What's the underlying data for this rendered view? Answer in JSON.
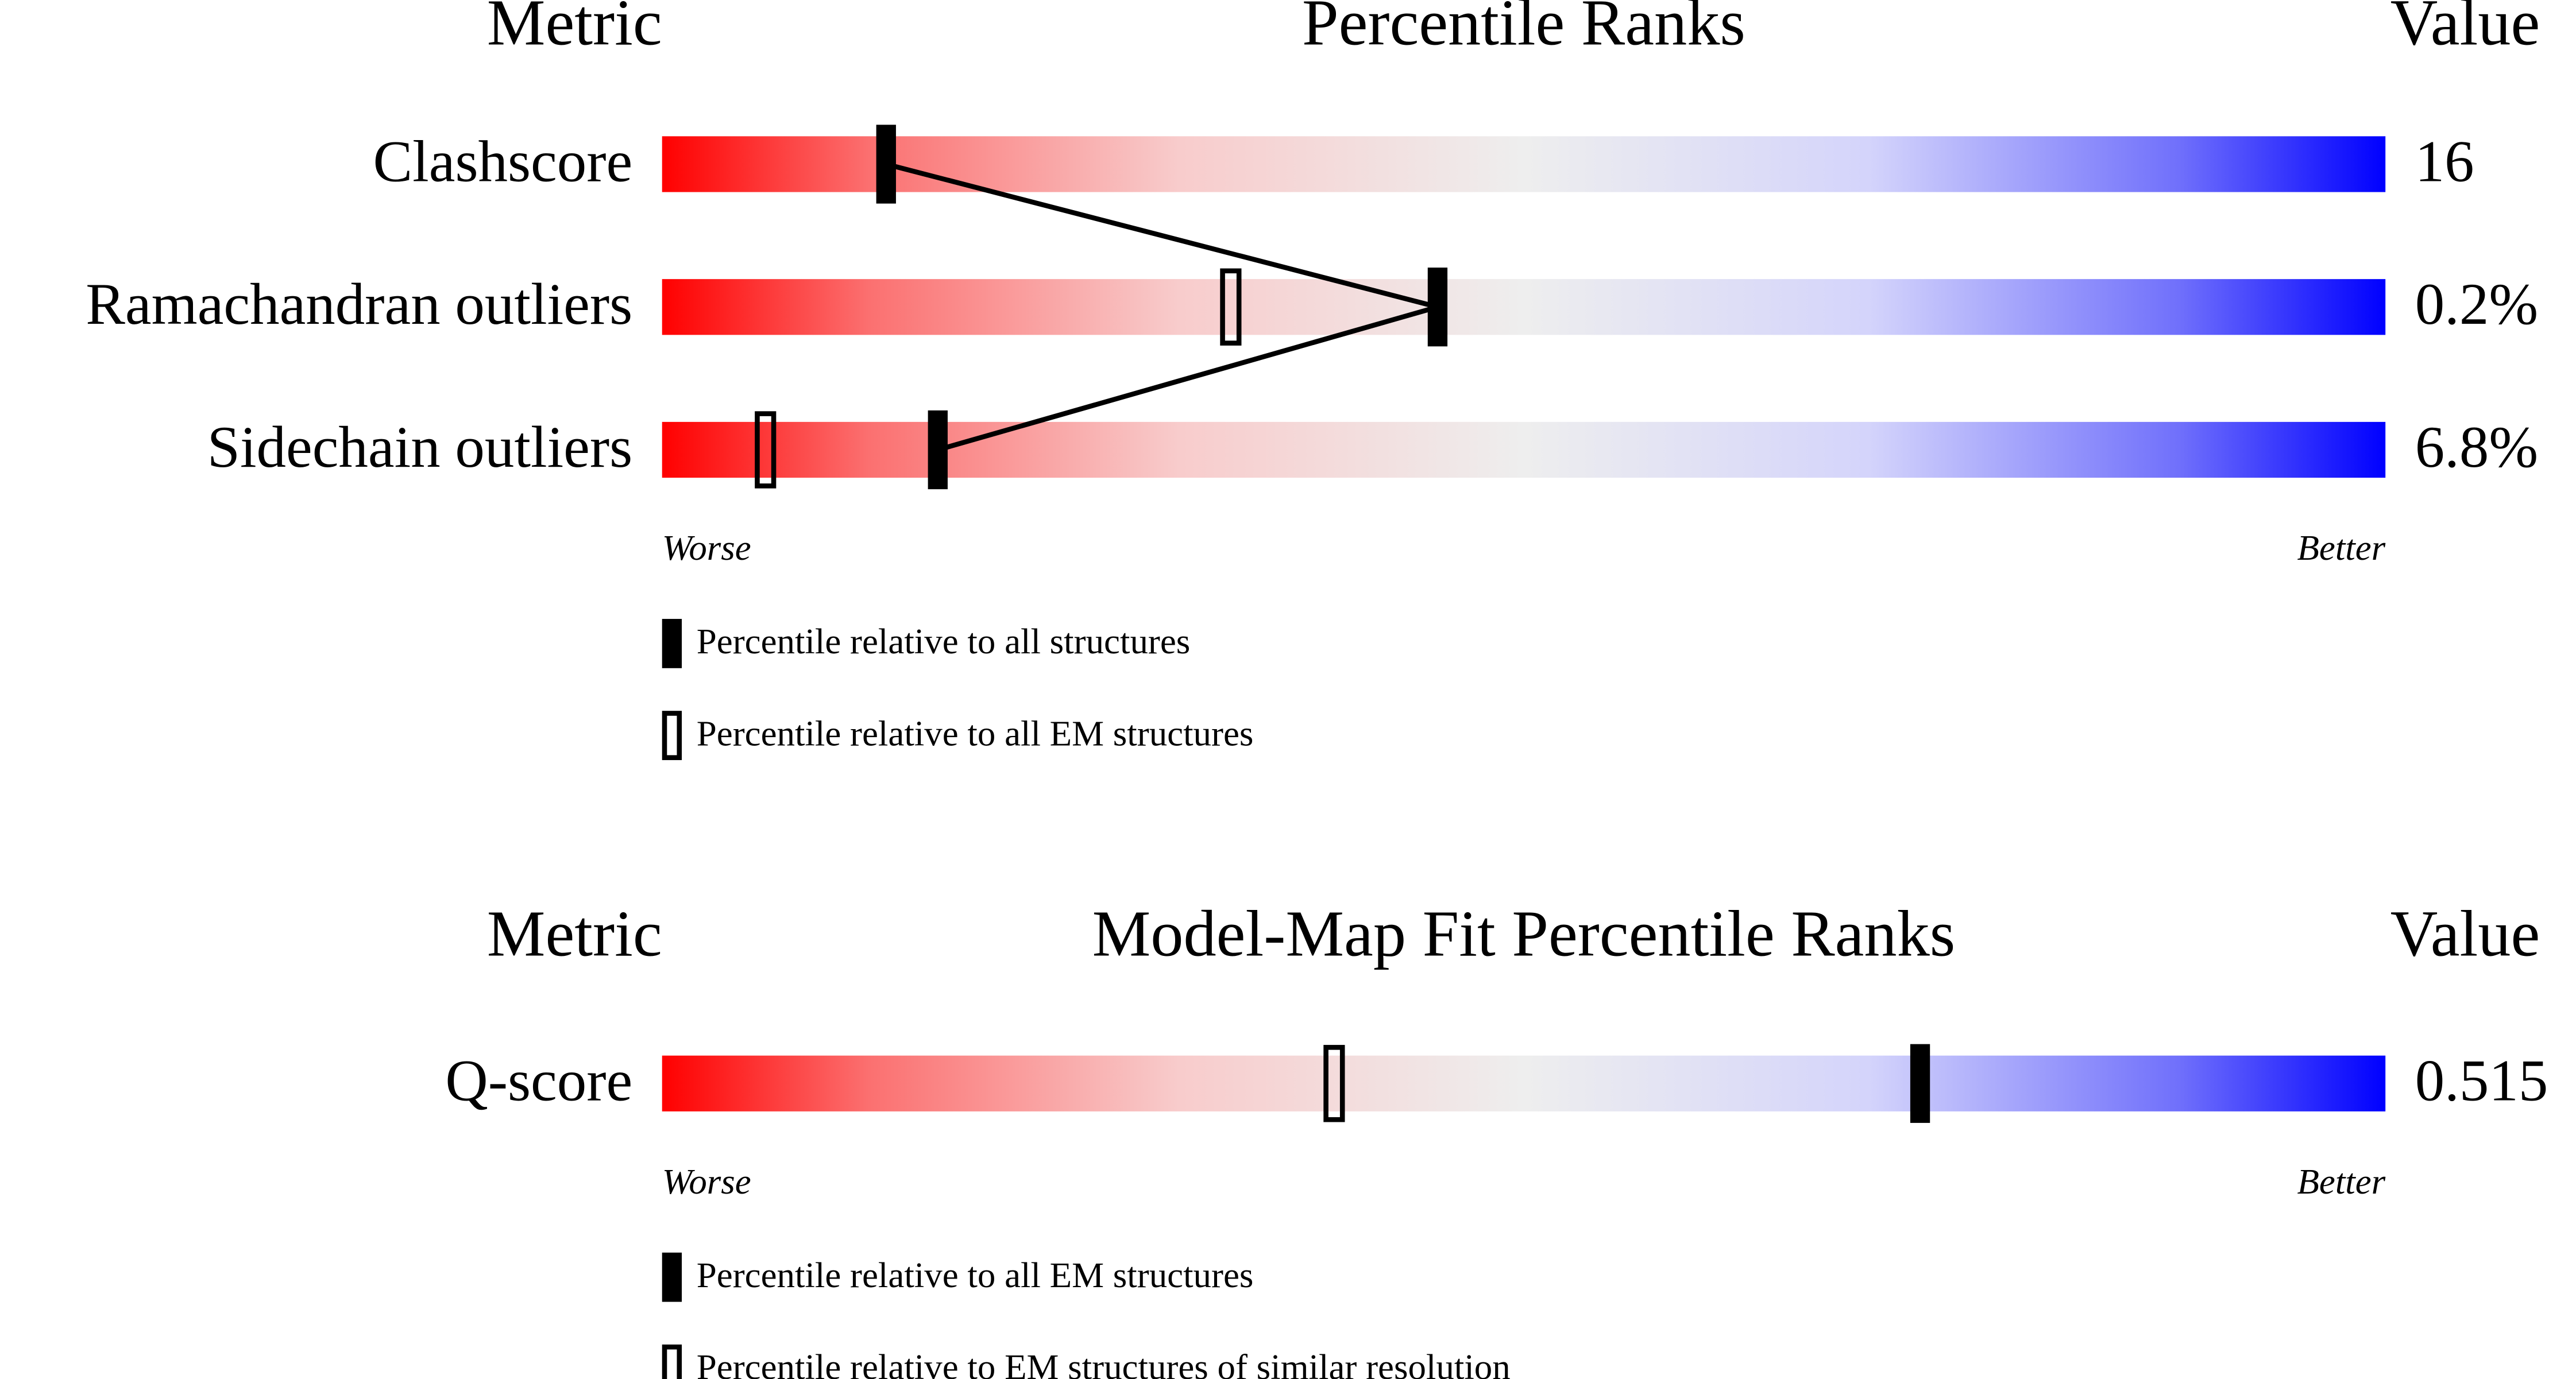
{
  "chart_data": [
    {
      "type": "slider",
      "header": {
        "left": "Metric",
        "title": "Percentile Ranks",
        "right": "Value"
      },
      "categories": [
        "Clashscore",
        "Ramachandran outliers",
        "Sidechain outliers"
      ],
      "metric_values": [
        "16",
        "0.2%",
        "6.8%"
      ],
      "xlim": [
        0,
        100
      ],
      "scale_labels": {
        "low": "Worse",
        "high": "Better"
      },
      "series": [
        {
          "name": "Percentile relative to all structures",
          "color": "#000000",
          "filled": true,
          "connect": true,
          "values": [
            13,
            45,
            16
          ]
        },
        {
          "name": "Percentile relative to all EM structures",
          "color": "#000000",
          "filled": false,
          "connect": false,
          "values": [
            null,
            33,
            6
          ]
        }
      ]
    },
    {
      "type": "slider",
      "header": {
        "left": "Metric",
        "title": "Model-Map Fit Percentile Ranks",
        "right": "Value"
      },
      "categories": [
        "Q-score"
      ],
      "metric_values": [
        "0.515"
      ],
      "xlim": [
        0,
        100
      ],
      "scale_labels": {
        "low": "Worse",
        "high": "Better"
      },
      "series": [
        {
          "name": "Percentile relative to all EM structures",
          "color": "#000000",
          "filled": true,
          "connect": true,
          "values": [
            73
          ]
        },
        {
          "name": "Percentile relative to EM structures of similar resolution",
          "color": "#000000",
          "filled": false,
          "connect": false,
          "values": [
            39
          ]
        }
      ]
    }
  ]
}
